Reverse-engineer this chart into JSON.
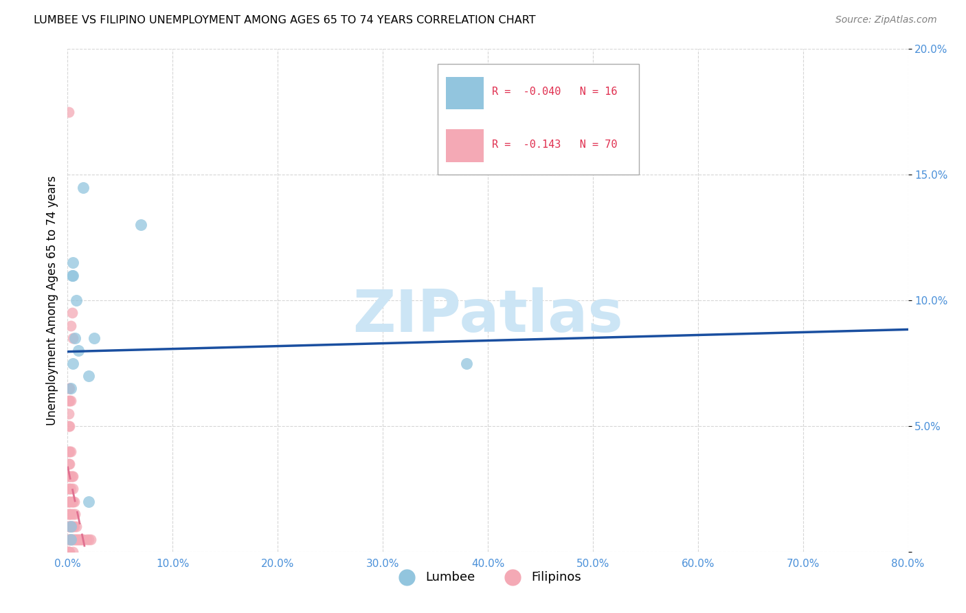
{
  "title": "LUMBEE VS FILIPINO UNEMPLOYMENT AMONG AGES 65 TO 74 YEARS CORRELATION CHART",
  "source": "Source: ZipAtlas.com",
  "ylabel": "Unemployment Among Ages 65 to 74 years",
  "xlim": [
    0,
    0.8
  ],
  "ylim": [
    0,
    0.2
  ],
  "xticks": [
    0.0,
    0.1,
    0.2,
    0.3,
    0.4,
    0.5,
    0.6,
    0.7,
    0.8
  ],
  "yticks": [
    0.0,
    0.05,
    0.1,
    0.15,
    0.2
  ],
  "xtick_labels": [
    "0.0%",
    "10.0%",
    "20.0%",
    "30.0%",
    "40.0%",
    "50.0%",
    "60.0%",
    "70.0%",
    "80.0%"
  ],
  "ytick_labels": [
    "",
    "5.0%",
    "10.0%",
    "15.0%",
    "20.0%"
  ],
  "lumbee_x": [
    0.003,
    0.003,
    0.003,
    0.004,
    0.005,
    0.005,
    0.005,
    0.007,
    0.008,
    0.01,
    0.015,
    0.02,
    0.02,
    0.025,
    0.07,
    0.38
  ],
  "lumbee_y": [
    0.005,
    0.01,
    0.065,
    0.11,
    0.115,
    0.11,
    0.075,
    0.085,
    0.1,
    0.08,
    0.145,
    0.07,
    0.02,
    0.085,
    0.13,
    0.075
  ],
  "filipino_x": [
    0.001,
    0.001,
    0.001,
    0.001,
    0.001,
    0.001,
    0.001,
    0.001,
    0.001,
    0.001,
    0.001,
    0.001,
    0.001,
    0.001,
    0.001,
    0.001,
    0.001,
    0.001,
    0.001,
    0.002,
    0.002,
    0.002,
    0.002,
    0.002,
    0.002,
    0.002,
    0.002,
    0.002,
    0.002,
    0.002,
    0.002,
    0.003,
    0.003,
    0.003,
    0.003,
    0.003,
    0.003,
    0.003,
    0.003,
    0.003,
    0.004,
    0.004,
    0.004,
    0.004,
    0.004,
    0.005,
    0.005,
    0.005,
    0.005,
    0.005,
    0.005,
    0.005,
    0.005,
    0.006,
    0.006,
    0.006,
    0.007,
    0.007,
    0.008,
    0.008,
    0.009,
    0.01,
    0.011,
    0.012,
    0.013,
    0.014,
    0.015,
    0.018,
    0.02,
    0.022
  ],
  "filipino_y": [
    0.0,
    0.0,
    0.0,
    0.005,
    0.005,
    0.01,
    0.01,
    0.015,
    0.02,
    0.02,
    0.025,
    0.03,
    0.035,
    0.04,
    0.05,
    0.055,
    0.06,
    0.065,
    0.175,
    0.0,
    0.005,
    0.01,
    0.015,
    0.02,
    0.025,
    0.03,
    0.035,
    0.04,
    0.05,
    0.06,
    0.065,
    0.005,
    0.01,
    0.015,
    0.02,
    0.025,
    0.03,
    0.04,
    0.06,
    0.09,
    0.005,
    0.01,
    0.02,
    0.03,
    0.095,
    0.0,
    0.005,
    0.01,
    0.015,
    0.02,
    0.025,
    0.03,
    0.085,
    0.005,
    0.01,
    0.02,
    0.005,
    0.015,
    0.005,
    0.01,
    0.005,
    0.005,
    0.005,
    0.005,
    0.005,
    0.005,
    0.005,
    0.005,
    0.005,
    0.005
  ],
  "lumbee_color": "#92c5de",
  "filipino_color": "#f4a9b5",
  "lumbee_line_color": "#1a4fa0",
  "filipino_line_color": "#e07090",
  "lumbee_R": -0.04,
  "lumbee_N": 16,
  "filipino_R": -0.143,
  "filipino_N": 70,
  "watermark": "ZIPatlas",
  "watermark_color": "#cce5f5",
  "background_color": "#ffffff",
  "grid_color": "#cccccc",
  "tick_color": "#4a90d9",
  "legend_r_color": "#e03050"
}
